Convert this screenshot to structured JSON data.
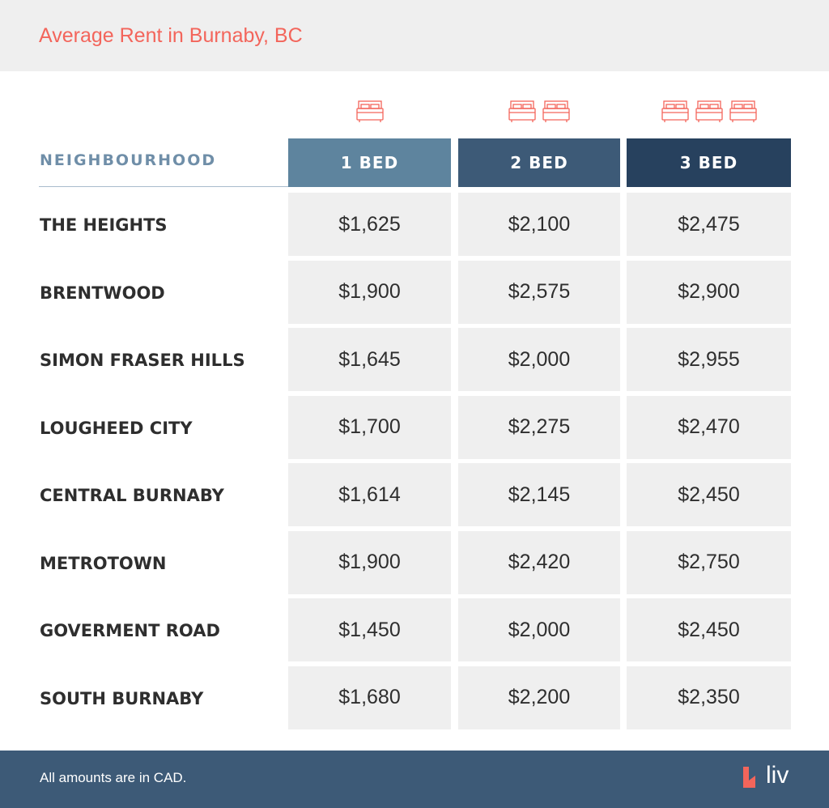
{
  "title": "Average Rent in Burnaby, BC",
  "colors": {
    "accent": "#f3655b",
    "col1": "#5e849e",
    "col2": "#3d5a77",
    "col3": "#27415e",
    "cell": "#efefef",
    "footer": "#3d5a77"
  },
  "chart_data": {
    "type": "table",
    "row_header": "NEIGHBOURHOOD",
    "columns": [
      {
        "label": "1 BED",
        "icon": "bed-icon",
        "icon_count": 1
      },
      {
        "label": "2 BED",
        "icon": "bed-icon",
        "icon_count": 2
      },
      {
        "label": "3 BED",
        "icon": "bed-icon",
        "icon_count": 3
      }
    ],
    "rows": [
      {
        "name": "THE HEIGHTS",
        "values": [
          "$1,625",
          "$2,100",
          "$2,475"
        ]
      },
      {
        "name": "BRENTWOOD",
        "values": [
          "$1,900",
          "$2,575",
          "$2,900"
        ]
      },
      {
        "name": "SIMON FRASER HILLS",
        "values": [
          "$1,645",
          "$2,000",
          "$2,955"
        ]
      },
      {
        "name": "LOUGHEED CITY",
        "values": [
          "$1,700",
          "$2,275",
          "$2,470"
        ]
      },
      {
        "name": "CENTRAL BURNABY",
        "values": [
          "$1,614",
          "$2,145",
          "$2,450"
        ]
      },
      {
        "name": "METROTOWN",
        "values": [
          "$1,900",
          "$2,420",
          "$2,750"
        ]
      },
      {
        "name": "GOVERMENT ROAD",
        "values": [
          "$1,450",
          "$2,000",
          "$2,450"
        ]
      },
      {
        "name": "SOUTH BURNABY",
        "values": [
          "$1,680",
          "$2,200",
          "$2,350"
        ]
      }
    ]
  },
  "footer": {
    "note": "All amounts are in CAD.",
    "logo": "liv"
  }
}
